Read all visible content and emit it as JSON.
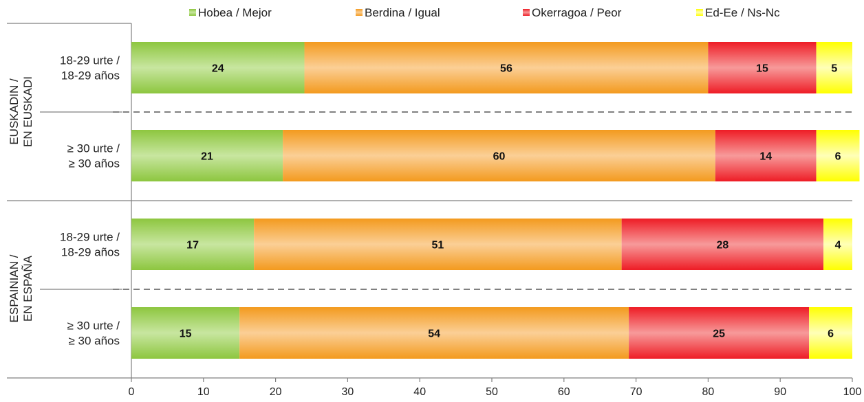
{
  "chart_data": {
    "type": "bar",
    "orientation": "horizontal",
    "stacked": true,
    "title": "",
    "xlabel": "",
    "ylabel": "",
    "xlim": [
      0,
      100
    ],
    "x_ticks": [
      0,
      10,
      20,
      30,
      40,
      50,
      60,
      70,
      80,
      90,
      100
    ],
    "grid": false,
    "legend_position": "top",
    "groups": [
      {
        "label": [
          "EUSKADIN /",
          "EN EUSKADI"
        ],
        "categories": [
          0,
          1
        ]
      },
      {
        "label": [
          "ESPAINIAN /",
          "EN ESPAÑA"
        ],
        "categories": [
          2,
          3
        ]
      }
    ],
    "categories": [
      [
        "18-29 urte /",
        "18-29 años"
      ],
      [
        "≥ 30 urte /",
        "≥ 30 años"
      ],
      [
        "18-29 urte /",
        "18-29 años"
      ],
      [
        "≥ 30 urte /",
        "≥ 30 años"
      ]
    ],
    "series": [
      {
        "name": "Hobea / Mejor",
        "color": "#8dc63f",
        "light": "#c8e6a0",
        "values": [
          24,
          21,
          17,
          15
        ]
      },
      {
        "name": "Berdina / Igual",
        "color": "#f39a1e",
        "light": "#fbcf96",
        "values": [
          56,
          60,
          51,
          54
        ]
      },
      {
        "name": "Okerragoa / Peor",
        "color": "#ee1c25",
        "light": "#f79a9a",
        "values": [
          15,
          14,
          28,
          25
        ]
      },
      {
        "name": "Ed-Ee / Ns-Nc",
        "color": "#ffff00",
        "light": "#ffffb8",
        "values": [
          5,
          6,
          4,
          6
        ]
      }
    ]
  }
}
